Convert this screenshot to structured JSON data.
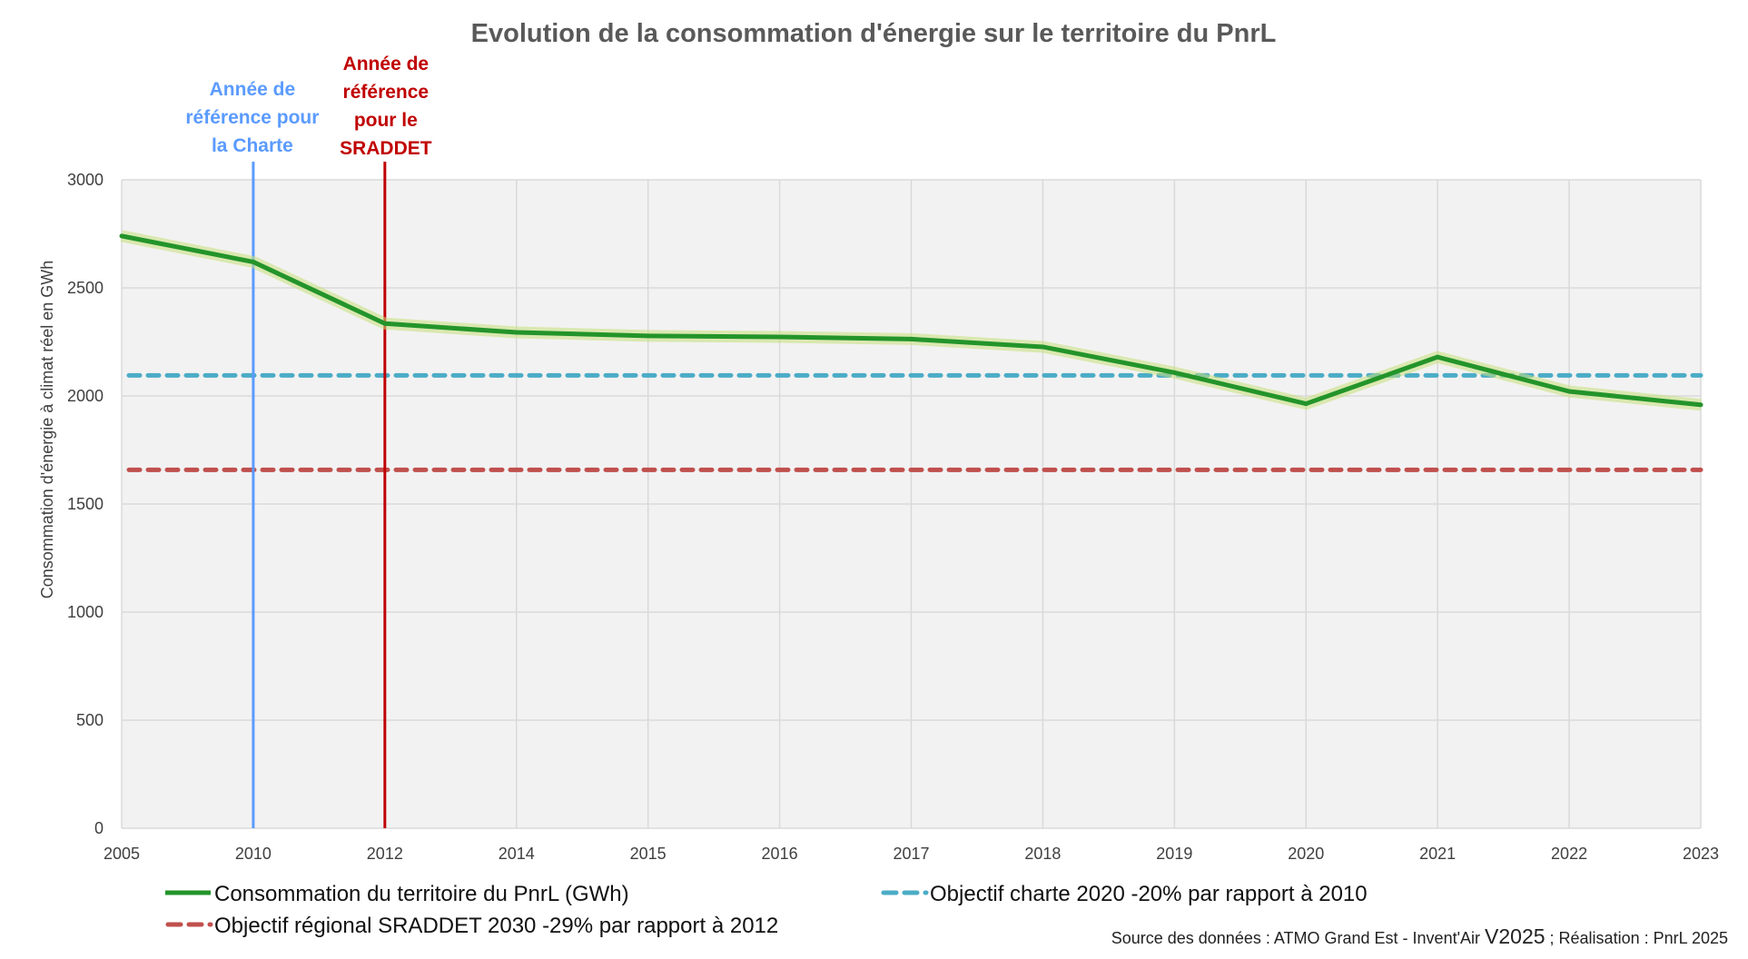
{
  "chart_data": {
    "type": "line",
    "title": "Evolution de la consommation d'énergie sur le territoire du PnrL",
    "xlabel": "",
    "ylabel": "Consommation d'énergie à climat réel  en GWh",
    "ylim": [
      0,
      3000
    ],
    "yticks": [
      0,
      500,
      1000,
      1500,
      2000,
      2500,
      3000
    ],
    "grid": true,
    "categories": [
      "2005",
      "2010",
      "2012",
      "2014",
      "2015",
      "2016",
      "2017",
      "2018",
      "2019",
      "2020",
      "2021",
      "2022",
      "2023"
    ],
    "series": [
      {
        "name": "Consommation du territoire du PnrL (GWh)",
        "color": "#23942a",
        "style": "solid",
        "values": [
          2740,
          2620,
          2335,
          2294,
          2278,
          2273,
          2263,
          2227,
          2108,
          1964,
          2180,
          2021,
          1959
        ]
      },
      {
        "name": "Objectif charte 2020 -20% par rapport à 2010",
        "color": "#4bacc6",
        "style": "dashed",
        "constant": 2095
      },
      {
        "name": "Objectif régional SRADDET 2030 -29% par rapport à 2012",
        "color": "#c0504d",
        "style": "dashed",
        "constant": 1658
      }
    ],
    "annotations": [
      {
        "category": "2010",
        "color": "#5b9bff",
        "lines": [
          "Année de",
          "référence pour",
          "la Charte"
        ]
      },
      {
        "category": "2012",
        "color": "#c00000",
        "lines": [
          "Année de",
          "référence",
          "pour le",
          "SRADDET"
        ]
      }
    ],
    "legend_position": "bottom",
    "source": {
      "before": "Source des données :  ATMO Grand Est  - Invent'Air ",
      "version": "V2025",
      "after": " ; Réalisation : PnrL 2025"
    }
  }
}
